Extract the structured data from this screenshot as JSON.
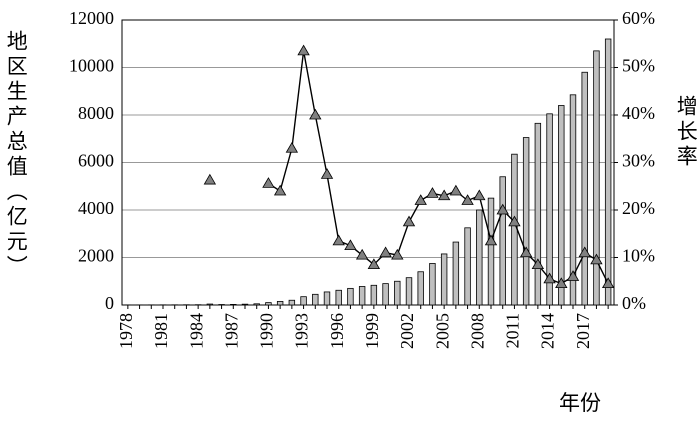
{
  "chart_data": {
    "type": "bar",
    "categories": [
      "1978",
      null,
      null,
      "1981",
      null,
      null,
      "1984",
      null,
      null,
      "1987",
      null,
      null,
      "1990",
      null,
      null,
      "1993",
      null,
      null,
      "1996",
      null,
      null,
      "1999",
      null,
      null,
      "2002",
      null,
      null,
      "2005",
      null,
      null,
      "2008",
      null,
      null,
      "2011",
      null,
      null,
      "2014",
      null,
      null,
      "2017",
      null,
      null
    ],
    "series": [
      {
        "type": "bar",
        "color": "#bfbfbf",
        "values": [
          5,
          5,
          6,
          7,
          8,
          10,
          12,
          40,
          20,
          25,
          35,
          50,
          100,
          150,
          200,
          350,
          450,
          550,
          620,
          700,
          780,
          830,
          900,
          1000,
          1150,
          1400,
          1750,
          2150,
          2650,
          3250,
          4000,
          4500,
          5400,
          6350,
          7050,
          7650,
          8050,
          8400,
          8850,
          9800,
          10700,
          11200
        ]
      },
      {
        "type": "line",
        "axis": "y2",
        "color": "#808080",
        "values": [
          null,
          null,
          null,
          null,
          null,
          null,
          null,
          26.3,
          null,
          null,
          null,
          null,
          25.6,
          24,
          33,
          53.5,
          40,
          27.5,
          13.5,
          12.5,
          10.5,
          8.5,
          11,
          10.5,
          17.5,
          22,
          23.5,
          23,
          24,
          22,
          23,
          13.5,
          20,
          17.5,
          11,
          8.5,
          5.5,
          4.5,
          6,
          11,
          9.5,
          4.5
        ]
      }
    ],
    "y_label": "地区生产总值（亿元）",
    "y2_label": "增长率",
    "x_label": "年份",
    "ylim": [
      0,
      12000
    ],
    "yticks": [
      0,
      2000,
      4000,
      6000,
      8000,
      10000,
      12000
    ],
    "y2lim": [
      0,
      60
    ],
    "y2ticks": [
      {
        "value": 0,
        "label": "0%"
      },
      {
        "value": 10,
        "label": "10%"
      },
      {
        "value": 20,
        "label": "20%"
      },
      {
        "value": 30,
        "label": "30%"
      },
      {
        "value": 40,
        "label": "40%"
      },
      {
        "value": 50,
        "label": "50%"
      },
      {
        "value": 60,
        "label": "60%"
      }
    ],
    "grid": true
  }
}
